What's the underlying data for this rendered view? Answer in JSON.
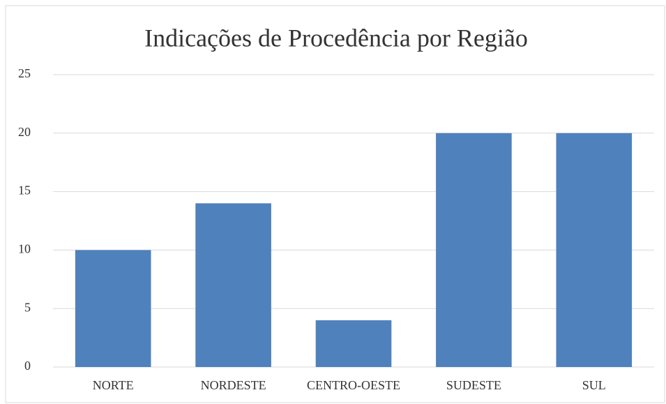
{
  "chart_data": {
    "type": "bar",
    "title": "Indicações de Procedência por Região",
    "categories": [
      "NORTE",
      "NORDESTE",
      "CENTRO-OESTE",
      "SUDESTE",
      "SUL"
    ],
    "values": [
      10,
      14,
      4,
      20,
      20
    ],
    "color": "#4f81bd",
    "ylim": [
      0,
      25
    ],
    "yticks": [
      0,
      5,
      10,
      15,
      20,
      25
    ],
    "grid": true
  }
}
